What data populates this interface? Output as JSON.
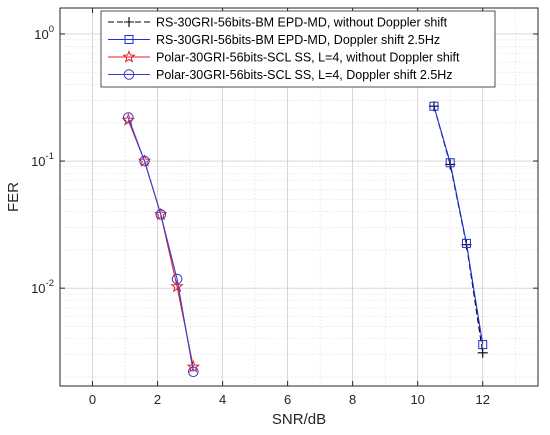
{
  "chart_data": {
    "type": "line",
    "xlabel": "SNR/dB",
    "ylabel": "FER",
    "xlim": [
      -1,
      13.7
    ],
    "ylim": [
      0.0017,
      1.6
    ],
    "y_scale": "log",
    "grid": true,
    "legend_position": "top",
    "x_ticks": [
      {
        "value": 0,
        "label": "0"
      },
      {
        "value": 2,
        "label": "2"
      },
      {
        "value": 4,
        "label": "4"
      },
      {
        "value": 6,
        "label": "6"
      },
      {
        "value": 8,
        "label": "8"
      },
      {
        "value": 10,
        "label": "10"
      },
      {
        "value": 12,
        "label": "12"
      }
    ],
    "y_ticks": [
      {
        "value": 1,
        "base": "10",
        "exp": "0"
      },
      {
        "value": 0.1,
        "base": "10",
        "exp": "-1"
      },
      {
        "value": 0.01,
        "base": "10",
        "exp": "-2"
      }
    ],
    "series": [
      {
        "name": "RS-30GRI-56bits-BM EPD-MD, without Doppler shift",
        "color": "#000000",
        "dash": true,
        "marker": "plus",
        "x": [
          10.5,
          11.0,
          11.5,
          12.0
        ],
        "y": [
          0.27,
          0.094,
          0.022,
          0.0031
        ]
      },
      {
        "name": "RS-30GRI-56bits-BM EPD-MD, Doppler shift 2.5Hz",
        "color": "#1f2fd6",
        "dash": false,
        "marker": "square",
        "x": [
          10.5,
          11.0,
          11.5,
          12.0
        ],
        "y": [
          0.27,
          0.097,
          0.0225,
          0.0036
        ]
      },
      {
        "name": "Polar-30GRI-56bits-SCL SS, L=4, without Doppler shift",
        "color": "#e0201b",
        "dash": false,
        "marker": "star",
        "x": [
          1.1,
          1.6,
          2.1,
          2.6,
          3.1
        ],
        "y": [
          0.21,
          0.1,
          0.038,
          0.0103,
          0.0024
        ]
      },
      {
        "name": "Polar-30GRI-56bits-SCL SS, L=4, Doppler shift 2.5Hz",
        "color": "#3c3cd2",
        "dash": false,
        "marker": "circle",
        "x": [
          1.1,
          1.6,
          2.1,
          2.6,
          3.1
        ],
        "y": [
          0.22,
          0.1,
          0.038,
          0.0118,
          0.0022
        ]
      }
    ]
  }
}
